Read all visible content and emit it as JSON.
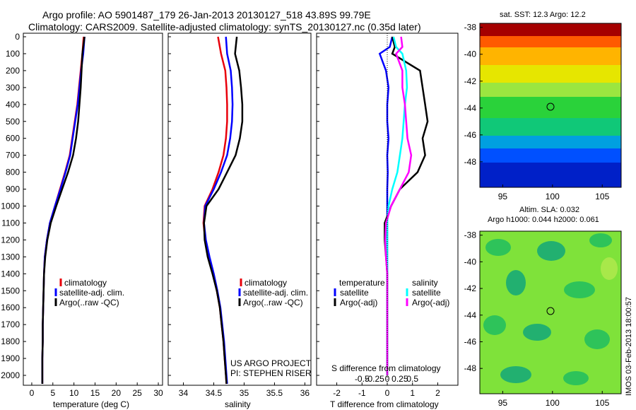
{
  "title_line1": "Argo profile: AO 5901487_179 26-Jan-2013 20130127_518 43.89S 99.79E",
  "title_line2": "Climatology: CARS2009. Satellite-adjusted climatology: synTS_20130127.nc (0.35d later)",
  "depth_ticks": [
    "0",
    "100",
    "200",
    "300",
    "400",
    "500",
    "600",
    "700",
    "800",
    "900",
    "1000",
    "1100",
    "1200",
    "1300",
    "1400",
    "1500",
    "1600",
    "1700",
    "1800",
    "1900",
    "2000"
  ],
  "colors": {
    "climatology": "#e8000b",
    "satellite": "#0000ff",
    "argo": "#000000",
    "sat_sal": "#00ffff",
    "argo_sal": "#ff00ff"
  },
  "temp_panel": {
    "xlabel": "temperature (deg C)",
    "xticks": [
      "0",
      "5",
      "10",
      "15",
      "20",
      "25",
      "30"
    ],
    "legend": [
      "climatology",
      "satellite-adj. clim.",
      "Argo(..raw -QC)"
    ]
  },
  "sal_panel": {
    "xlabel": "salinity",
    "xticks": [
      "34",
      "34.5",
      "35",
      "35.5",
      "36"
    ],
    "legend": [
      "climatology",
      "satellite-adj. clim.",
      "Argo(..raw -QC)"
    ],
    "credit1": "US ARGO PROJECT",
    "credit2": "PI: STEPHEN RISER"
  },
  "diff_panel": {
    "xlabel": "T difference from climatology",
    "top_label": "S difference from climatology",
    "xticks": [
      "-2",
      "-1",
      "0",
      "1",
      "2"
    ],
    "sticks": [
      "-0.5",
      "-0.25",
      "0",
      "0.25",
      "0.5"
    ],
    "legend_head_t": "temperature",
    "legend_head_s": "salinity",
    "legend_t": [
      "satellite",
      "Argo(-adj)"
    ],
    "legend_s": [
      "satellite",
      "Argo(-adj)"
    ]
  },
  "sst_map": {
    "title": "sat. SST: 12.3  Argo: 12.2",
    "yticks": [
      "-38",
      "-40",
      "-42",
      "-44",
      "-46",
      "-48"
    ],
    "xticks": [
      "95",
      "100",
      "105"
    ]
  },
  "sla_map": {
    "title1": "Altim. SLA: 0.032",
    "title2": "Argo h1000: 0.044 h2000: 0.061",
    "yticks": [
      "-38",
      "-40",
      "-42",
      "-44",
      "-46",
      "-48"
    ],
    "xticks": [
      "95",
      "100",
      "105"
    ]
  },
  "stamp": "IMOS 03-Feb-2013 18:00:57",
  "chart_data": [
    {
      "type": "line",
      "ylabel": "",
      "xlabel": "temperature (deg C)",
      "xlim": [
        -2,
        31
      ],
      "ylim": [
        2050,
        0
      ],
      "series": [
        {
          "name": "climatology",
          "x": [
            12.3,
            12.0,
            11.6,
            11.2,
            10.8,
            10.2,
            9.6,
            9.0,
            7.9,
            6.7,
            5.5,
            4.3,
            3.6,
            3.1,
            2.9,
            2.8,
            2.7,
            2.6,
            2.6,
            2.5,
            2.5,
            2.5
          ],
          "y": [
            0,
            100,
            200,
            300,
            400,
            500,
            600,
            700,
            800,
            900,
            1000,
            1100,
            1200,
            1300,
            1400,
            1500,
            1600,
            1700,
            1800,
            1900,
            2000,
            2050
          ]
        },
        {
          "name": "satellite-adj. clim.",
          "x": [
            12.5,
            12.2,
            11.7,
            11.3,
            10.9,
            10.3,
            9.7,
            9.1,
            8.0,
            6.8,
            5.5,
            4.3,
            3.6,
            3.1,
            2.9,
            2.8,
            2.7,
            2.6,
            2.6,
            2.5,
            2.5,
            2.5
          ],
          "y": [
            0,
            100,
            200,
            300,
            400,
            500,
            600,
            700,
            800,
            900,
            1000,
            1100,
            1200,
            1300,
            1400,
            1500,
            1600,
            1700,
            1800,
            1900,
            2000,
            2050
          ]
        },
        {
          "name": "Argo(..raw -QC)",
          "x": [
            12.5,
            12.0,
            11.8,
            11.6,
            11.3,
            11.0,
            10.5,
            9.8,
            8.6,
            7.2,
            5.8,
            4.5,
            3.7,
            3.2,
            2.9,
            2.8,
            2.7,
            2.6,
            2.6,
            2.5,
            2.5,
            2.5
          ],
          "y": [
            0,
            100,
            200,
            300,
            400,
            500,
            600,
            700,
            800,
            900,
            1000,
            1100,
            1200,
            1300,
            1400,
            1500,
            1600,
            1700,
            1800,
            1900,
            2000,
            2050
          ]
        }
      ]
    },
    {
      "type": "line",
      "xlabel": "salinity",
      "xlim": [
        33.75,
        36.1
      ],
      "ylim": [
        2050,
        0
      ],
      "series": [
        {
          "name": "climatology",
          "x": [
            34.57,
            34.62,
            34.69,
            34.71,
            34.72,
            34.72,
            34.7,
            34.66,
            34.58,
            34.48,
            34.35,
            34.33,
            34.36,
            34.42,
            34.49,
            34.55,
            34.6,
            34.63,
            34.66,
            34.68,
            34.7,
            34.71
          ],
          "y": [
            0,
            100,
            200,
            300,
            400,
            500,
            600,
            700,
            800,
            900,
            1000,
            1100,
            1200,
            1300,
            1400,
            1500,
            1600,
            1700,
            1800,
            1900,
            2000,
            2050
          ]
        },
        {
          "name": "satellite-adj. clim.",
          "x": [
            34.7,
            34.72,
            34.78,
            34.8,
            34.81,
            34.8,
            34.77,
            34.72,
            34.62,
            34.5,
            34.36,
            34.34,
            34.37,
            34.43,
            34.5,
            34.56,
            34.61,
            34.64,
            34.67,
            34.69,
            34.71,
            34.72
          ],
          "y": [
            0,
            100,
            200,
            300,
            400,
            500,
            600,
            700,
            800,
            900,
            1000,
            1100,
            1200,
            1300,
            1400,
            1500,
            1600,
            1700,
            1800,
            1900,
            2000,
            2050
          ]
        },
        {
          "name": "Argo(..raw -QC)",
          "x": [
            34.88,
            34.85,
            34.92,
            34.95,
            34.97,
            34.97,
            34.93,
            34.86,
            34.72,
            34.58,
            34.38,
            34.34,
            34.35,
            34.4,
            34.48,
            34.55,
            34.6,
            34.63,
            34.66,
            34.68,
            34.7,
            34.71
          ],
          "y": [
            0,
            100,
            200,
            300,
            400,
            500,
            600,
            700,
            800,
            900,
            1000,
            1100,
            1200,
            1300,
            1400,
            1500,
            1600,
            1700,
            1800,
            1900,
            2000,
            2050
          ]
        }
      ]
    },
    {
      "type": "line",
      "xlabel": "T difference from climatology",
      "xlim": [
        -2.8,
        2.8
      ],
      "ylim": [
        2050,
        0
      ],
      "series": [
        {
          "name": "temperature satellite",
          "x": [
            0.2,
            0.1,
            -0.3,
            -0.05,
            0.05,
            0.0,
            0.0,
            0.05,
            0.0,
            0.02,
            0.0,
            0.0,
            0.0,
            0.0,
            0.0,
            0.0,
            0.0,
            0.0,
            0.0,
            0.0,
            0.0,
            0.0
          ],
          "y": [
            0,
            60,
            100,
            200,
            300,
            400,
            500,
            600,
            700,
            800,
            900,
            1000,
            1100,
            1200,
            1300,
            1400,
            1500,
            1600,
            1700,
            1800,
            1900,
            2000
          ]
        },
        {
          "name": "temperature Argo(-adj)",
          "x": [
            0.2,
            0.3,
            0.2,
            1.3,
            1.4,
            1.5,
            1.6,
            1.4,
            1.5,
            1.2,
            0.5,
            0.15,
            -0.1,
            -0.1,
            -0.05,
            0.0,
            0.0,
            0.0,
            0.0,
            0.0,
            0.0,
            0.0
          ],
          "y": [
            0,
            60,
            100,
            200,
            300,
            400,
            500,
            600,
            700,
            800,
            900,
            1000,
            1100,
            1200,
            1300,
            1400,
            1500,
            1600,
            1700,
            1800,
            1900,
            2000
          ]
        },
        {
          "name": "salinity satellite",
          "x": [
            0.25,
            0.35,
            0.6,
            0.75,
            0.78,
            0.7,
            0.65,
            0.6,
            0.5,
            0.4,
            0.2,
            0.05,
            0.0,
            0.0,
            0.0,
            0.0,
            0.0,
            0.0,
            0.0,
            0.0,
            0.0,
            0.0
          ],
          "y": [
            0,
            60,
            100,
            200,
            300,
            400,
            500,
            600,
            700,
            800,
            900,
            1000,
            1100,
            1200,
            1300,
            1400,
            1500,
            1600,
            1700,
            1800,
            1900,
            2000
          ]
        },
        {
          "name": "salinity Argo(-adj)",
          "x": [
            0.55,
            0.6,
            0.35,
            0.6,
            0.6,
            0.7,
            0.75,
            0.8,
            0.95,
            0.85,
            0.5,
            0.15,
            -0.05,
            -0.08,
            -0.05,
            0.0,
            0.0,
            0.0,
            0.0,
            0.0,
            0.0,
            0.0
          ],
          "y": [
            0,
            60,
            100,
            200,
            300,
            400,
            500,
            600,
            700,
            800,
            900,
            1000,
            1100,
            1200,
            1300,
            1400,
            1500,
            1600,
            1700,
            1800,
            1900,
            2000
          ]
        }
      ]
    }
  ]
}
